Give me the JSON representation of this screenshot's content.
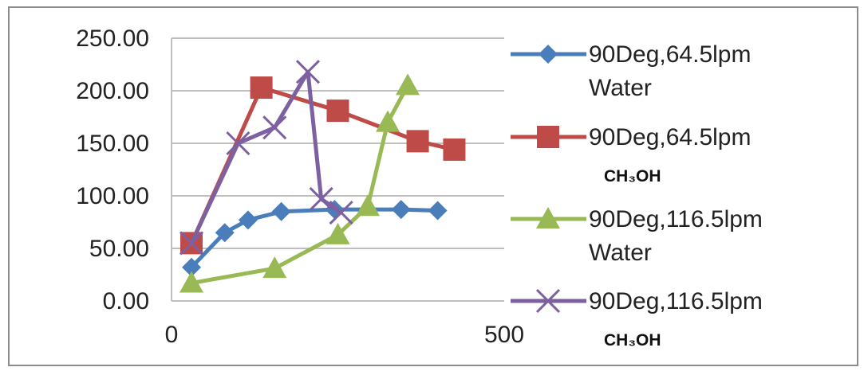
{
  "chart_data": {
    "type": "line",
    "title": "",
    "xlabel": "",
    "ylabel": "",
    "xlim": [
      0,
      500
    ],
    "ylim": [
      0,
      250
    ],
    "x_ticks": [
      "0",
      "500"
    ],
    "y_ticks": [
      "0.00",
      "50.00",
      "100.00",
      "150.00",
      "200.00",
      "250.00"
    ],
    "grid": "horizontal",
    "legend_position": "right",
    "series": [
      {
        "name": "90Deg,64.5lpm Water",
        "legend_line1": "90Deg,64.5lpm",
        "legend_line2": "Water",
        "color": "#4a7ebb",
        "marker": "diamond",
        "x": [
          30,
          80,
          115,
          165,
          245,
          345,
          400
        ],
        "y": [
          32,
          65,
          77,
          85,
          87,
          87,
          86
        ]
      },
      {
        "name": "90Deg,64.5lpm CH3OH",
        "legend_line1": "90Deg,64.5lpm",
        "legend_line2": "CH₃OH",
        "color": "#be4b48",
        "marker": "square",
        "x": [
          30,
          135,
          250,
          370,
          425
        ],
        "y": [
          55,
          203,
          181,
          152,
          144
        ]
      },
      {
        "name": "90Deg,116.5lpm Water",
        "legend_line1": "90Deg,116.5lpm",
        "legend_line2": "Water",
        "color": "#98b954",
        "marker": "triangle",
        "x": [
          30,
          155,
          250,
          295,
          325,
          355
        ],
        "y": [
          17,
          31,
          63,
          90,
          170,
          205
        ]
      },
      {
        "name": "90Deg,116.5lpm CH3OH",
        "legend_line1": "90Deg,116.5lpm",
        "legend_line2": "CH₃OH",
        "color": "#7d60a0",
        "marker": "x",
        "x": [
          30,
          100,
          155,
          205,
          225,
          255
        ],
        "y": [
          55,
          150,
          165,
          218,
          97,
          84
        ]
      }
    ]
  }
}
